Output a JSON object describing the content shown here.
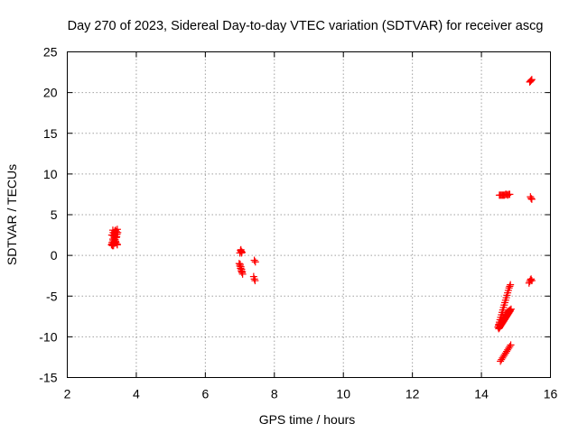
{
  "chart_data": {
    "type": "scatter",
    "title": "Day 270 of 2023, Sidereal Day-to-day VTEC variation (SDTVAR) for receiver ascg",
    "xlabel": "GPS time / hours",
    "ylabel": "SDTVAR / TECUs",
    "xlim": [
      2,
      16
    ],
    "ylim": [
      -15,
      25
    ],
    "xticks": [
      2,
      4,
      6,
      8,
      10,
      12,
      14,
      16
    ],
    "yticks": [
      -15,
      -10,
      -5,
      0,
      5,
      10,
      15,
      20,
      25
    ],
    "grid": true,
    "marker": "+",
    "color": "#ff0000",
    "series": [
      {
        "name": "SDTVAR",
        "x": [
          3.28,
          3.3,
          3.32,
          3.34,
          3.36,
          3.38,
          3.4,
          3.42,
          3.44,
          3.3,
          3.33,
          3.36,
          3.39,
          3.42,
          3.45,
          3.31,
          3.35,
          3.39,
          3.43,
          3.46,
          3.29,
          3.33,
          3.37,
          3.41,
          3.45,
          3.32,
          3.36,
          3.4,
          3.44,
          3.34,
          3.38,
          3.42,
          7.0,
          7.02,
          7.04,
          7.06,
          7.03,
          7.05,
          6.98,
          7.0,
          7.02,
          7.04,
          7.06,
          7.08,
          7.01,
          7.03,
          7.05,
          7.07,
          7.42,
          7.4,
          7.42,
          7.44,
          7.45,
          14.48,
          14.5,
          14.52,
          14.54,
          14.56,
          14.58,
          14.6,
          14.62,
          14.64,
          14.66,
          14.68,
          14.7,
          14.72,
          14.74,
          14.76,
          14.78,
          14.8,
          14.82,
          14.84,
          14.5,
          14.53,
          14.56,
          14.59,
          14.62,
          14.65,
          14.68,
          14.71,
          14.74,
          14.77,
          14.8,
          14.83,
          14.52,
          14.55,
          14.58,
          14.61,
          14.64,
          14.67,
          14.7,
          14.73,
          14.76,
          14.79,
          14.82,
          14.55,
          14.58,
          14.61,
          14.64,
          14.67,
          14.7,
          14.73,
          14.76,
          14.79,
          14.82,
          14.85,
          14.52,
          14.55,
          14.58,
          14.61,
          14.64,
          14.67,
          14.7,
          14.73,
          14.76,
          14.79,
          14.82,
          14.5,
          14.53,
          14.56,
          14.59,
          14.62,
          14.65,
          14.68,
          14.71,
          14.74,
          14.77,
          14.8,
          14.83,
          14.86,
          15.4,
          15.42,
          15.44,
          15.46,
          15.42,
          15.44,
          15.46,
          15.38,
          15.4,
          15.42,
          15.44,
          15.46
        ],
        "y": [
          1.3,
          1.6,
          2.0,
          2.4,
          2.7,
          3.0,
          3.1,
          2.9,
          2.6,
          1.4,
          1.8,
          2.2,
          2.6,
          2.9,
          3.2,
          1.2,
          1.5,
          1.9,
          2.3,
          2.8,
          2.5,
          2.8,
          2.0,
          1.6,
          1.3,
          3.1,
          2.4,
          1.7,
          1.4,
          1.2,
          1.5,
          2.2,
          0.3,
          0.6,
          0.5,
          0.4,
          0.7,
          0.3,
          -1.0,
          -1.3,
          -1.6,
          -1.9,
          -2.1,
          -2.3,
          -1.1,
          -1.4,
          -1.7,
          -2.0,
          -0.6,
          -2.6,
          -2.9,
          -3.1,
          -0.8,
          -8.8,
          -8.5,
          -8.2,
          -7.9,
          -7.6,
          -7.3,
          -7.0,
          -6.7,
          -6.4,
          -6.1,
          -5.8,
          -5.5,
          -5.2,
          -4.9,
          -4.6,
          -4.3,
          -4.0,
          -3.8,
          -3.6,
          -8.6,
          -8.4,
          -8.2,
          -8.0,
          -7.8,
          -7.6,
          -7.4,
          -7.2,
          -7.0,
          -6.9,
          -6.8,
          -6.7,
          -8.9,
          -8.7,
          -8.5,
          -8.3,
          -8.1,
          -7.9,
          -7.7,
          -7.5,
          -7.3,
          -7.1,
          -6.9,
          -13.0,
          -12.8,
          -12.6,
          -12.4,
          -12.2,
          -12.0,
          -11.8,
          -11.6,
          -11.4,
          -11.2,
          -11.0,
          7.4,
          7.4,
          7.4,
          7.4,
          7.4,
          7.4,
          7.5,
          7.5,
          7.4,
          7.5,
          7.5,
          -9.0,
          -8.8,
          -8.6,
          -8.4,
          -8.2,
          -8.0,
          -7.8,
          -7.6,
          -7.4,
          -7.2,
          -7.0,
          -6.8,
          -6.6,
          21.3,
          21.4,
          21.5,
          21.6,
          7.2,
          7.0,
          6.9,
          -3.4,
          -3.2,
          -3.0,
          -2.9,
          -3.1
        ]
      }
    ]
  }
}
